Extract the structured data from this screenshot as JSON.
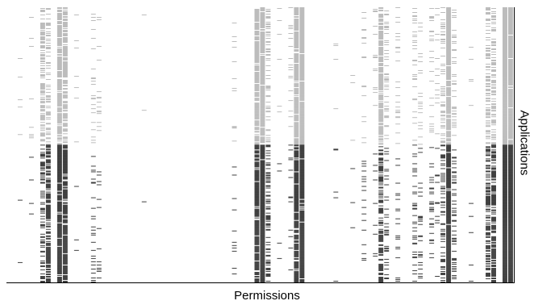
{
  "chart_data": {
    "type": "heatmap",
    "title": "",
    "xlabel": "Permissions",
    "ylabel": "Applications",
    "ylabel_position": "right",
    "grid": false,
    "legend": "none",
    "colors": {
      "group_a": "#a6a6a6",
      "group_b": "#000000",
      "axis": "#000000"
    },
    "row_groups": [
      {
        "name": "",
        "color_key": "group_a",
        "rows": [
          0,
          170
        ]
      },
      {
        "name": "",
        "color_key": "group_b",
        "rows": [
          170,
          340
        ]
      }
    ],
    "n_rows": 340,
    "n_cols": 90,
    "column_density": [
      [
        2,
        0.02,
        0.03
      ],
      [
        4,
        0.03,
        0.05
      ],
      [
        6,
        0.55,
        0.45
      ],
      [
        7,
        0.35,
        0.75
      ],
      [
        9,
        0.85,
        0.95
      ],
      [
        10,
        0.75,
        0.85
      ],
      [
        12,
        0.03,
        0.02
      ],
      [
        15,
        0.15,
        0.18
      ],
      [
        16,
        0.08,
        0.09
      ],
      [
        24,
        0.03,
        0.02
      ],
      [
        40,
        0.06,
        0.07
      ],
      [
        44,
        0.85,
        0.9
      ],
      [
        45,
        0.95,
        0.98
      ],
      [
        46,
        0.35,
        0.4
      ],
      [
        48,
        0.03,
        0.02
      ],
      [
        50,
        0.1,
        0.07
      ],
      [
        51,
        0.95,
        0.9
      ],
      [
        52,
        0.98,
        0.95
      ],
      [
        58,
        0.04,
        0.03
      ],
      [
        61,
        0.02,
        0.02
      ],
      [
        63,
        0.1,
        0.12
      ],
      [
        65,
        0.08,
        0.1
      ],
      [
        66,
        0.85,
        0.65
      ],
      [
        67,
        0.2,
        0.25
      ],
      [
        69,
        0.08,
        0.1
      ],
      [
        72,
        0.15,
        0.2
      ],
      [
        73,
        0.1,
        0.12
      ],
      [
        75,
        0.15,
        0.18
      ],
      [
        76,
        0.08,
        0.1
      ],
      [
        77,
        0.25,
        0.3
      ],
      [
        78,
        0.95,
        0.98
      ],
      [
        79,
        0.2,
        0.25
      ],
      [
        82,
        0.02,
        0.03
      ],
      [
        85,
        0.4,
        0.6
      ],
      [
        86,
        0.5,
        0.7
      ],
      [
        88,
        1.0,
        1.0
      ],
      [
        89,
        0.98,
        1.0
      ]
    ]
  }
}
